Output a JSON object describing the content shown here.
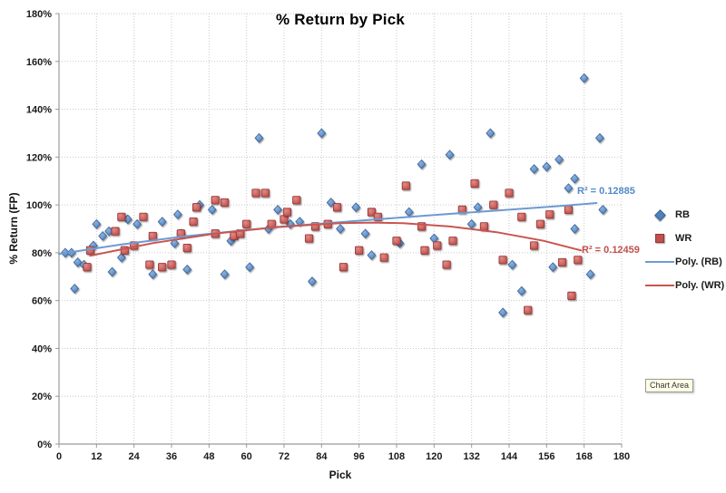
{
  "chart_data": {
    "type": "scatter",
    "title": "% Return by Pick",
    "xlabel": "Pick",
    "ylabel": "% Return (FP)",
    "x_axis": {
      "min": 0,
      "max": 180,
      "step": 12
    },
    "y_axis": {
      "min": 0,
      "max": 180,
      "step": 20,
      "format": "percent"
    },
    "grid": true,
    "legend": {
      "position": "right",
      "entries": [
        "RB",
        "WR",
        "Poly. (RB)",
        "Poly. (WR)"
      ]
    },
    "series": [
      {
        "name": "RB",
        "marker": "diamond",
        "color": "#4F81BD",
        "fill_light": "#8CB4E2",
        "fill_dark": "#4F81BD",
        "stroke": "#3A6494",
        "points": [
          [
            2,
            80
          ],
          [
            4,
            80
          ],
          [
            5,
            65
          ],
          [
            6,
            76
          ],
          [
            8,
            75
          ],
          [
            11,
            83
          ],
          [
            12,
            92
          ],
          [
            14,
            87
          ],
          [
            16,
            89
          ],
          [
            17,
            72
          ],
          [
            20,
            78
          ],
          [
            22,
            94
          ],
          [
            25,
            92
          ],
          [
            30,
            71
          ],
          [
            33,
            93
          ],
          [
            37,
            84
          ],
          [
            38,
            96
          ],
          [
            39,
            88
          ],
          [
            41,
            73
          ],
          [
            45,
            100
          ],
          [
            49,
            98
          ],
          [
            53,
            71
          ],
          [
            55,
            85
          ],
          [
            61,
            74
          ],
          [
            64,
            128
          ],
          [
            67,
            90
          ],
          [
            70,
            98
          ],
          [
            74,
            92
          ],
          [
            77,
            93
          ],
          [
            81,
            68
          ],
          [
            84,
            130
          ],
          [
            87,
            101
          ],
          [
            90,
            90
          ],
          [
            95,
            99
          ],
          [
            98,
            88
          ],
          [
            100,
            79
          ],
          [
            109,
            84
          ],
          [
            112,
            97
          ],
          [
            116,
            117
          ],
          [
            120,
            86
          ],
          [
            125,
            121
          ],
          [
            132,
            92
          ],
          [
            134,
            99
          ],
          [
            138,
            130
          ],
          [
            142,
            55
          ],
          [
            145,
            75
          ],
          [
            148,
            64
          ],
          [
            152,
            115
          ],
          [
            156,
            116
          ],
          [
            158,
            74
          ],
          [
            160,
            119
          ],
          [
            163,
            107
          ],
          [
            165,
            111
          ],
          [
            165,
            90
          ],
          [
            168,
            153
          ],
          [
            170,
            71
          ],
          [
            173,
            128
          ],
          [
            174,
            98
          ]
        ]
      },
      {
        "name": "WR",
        "marker": "square",
        "color": "#C0504D",
        "fill_light": "#E08B86",
        "fill_dark": "#C0504D",
        "stroke": "#943634",
        "points": [
          [
            9,
            74
          ],
          [
            10,
            81
          ],
          [
            18,
            89
          ],
          [
            20,
            95
          ],
          [
            21,
            81
          ],
          [
            24,
            83
          ],
          [
            27,
            95
          ],
          [
            29,
            75
          ],
          [
            30,
            87
          ],
          [
            33,
            74
          ],
          [
            36,
            75
          ],
          [
            39,
            88
          ],
          [
            41,
            82
          ],
          [
            43,
            93
          ],
          [
            44,
            99
          ],
          [
            50,
            88
          ],
          [
            50,
            102
          ],
          [
            53,
            101
          ],
          [
            56,
            87
          ],
          [
            58,
            88
          ],
          [
            60,
            92
          ],
          [
            63,
            105
          ],
          [
            66,
            105
          ],
          [
            68,
            92
          ],
          [
            72,
            94
          ],
          [
            73,
            97
          ],
          [
            76,
            102
          ],
          [
            80,
            86
          ],
          [
            82,
            91
          ],
          [
            86,
            92
          ],
          [
            89,
            99
          ],
          [
            91,
            74
          ],
          [
            96,
            81
          ],
          [
            100,
            97
          ],
          [
            102,
            95
          ],
          [
            104,
            78
          ],
          [
            108,
            85
          ],
          [
            111,
            108
          ],
          [
            116,
            91
          ],
          [
            117,
            81
          ],
          [
            121,
            83
          ],
          [
            124,
            75
          ],
          [
            126,
            85
          ],
          [
            129,
            98
          ],
          [
            133,
            109
          ],
          [
            136,
            91
          ],
          [
            139,
            100
          ],
          [
            142,
            77
          ],
          [
            144,
            105
          ],
          [
            148,
            95
          ],
          [
            150,
            56
          ],
          [
            152,
            83
          ],
          [
            154,
            92
          ],
          [
            157,
            96
          ],
          [
            161,
            76
          ],
          [
            163,
            98
          ],
          [
            164,
            62
          ],
          [
            166,
            77
          ]
        ]
      }
    ],
    "trendlines": [
      {
        "name": "Poly. (RB)",
        "series": "RB",
        "color": "#6D9AD2",
        "r2": "R² = 0.12885",
        "points": [
          [
            0,
            79.5
          ],
          [
            20,
            83.5
          ],
          [
            40,
            86.8
          ],
          [
            60,
            89.5
          ],
          [
            80,
            91.8
          ],
          [
            100,
            93.8
          ],
          [
            120,
            95.8
          ],
          [
            140,
            97.6
          ],
          [
            160,
            99.5
          ],
          [
            172,
            100.8
          ]
        ]
      },
      {
        "name": "Poly. (WR)",
        "series": "WR",
        "color": "#C9554F",
        "r2": "R² = 0.12459",
        "points": [
          [
            10,
            78.8
          ],
          [
            30,
            84
          ],
          [
            50,
            88
          ],
          [
            70,
            90.8
          ],
          [
            90,
            92.4
          ],
          [
            100,
            92.6
          ],
          [
            110,
            92.4
          ],
          [
            125,
            91
          ],
          [
            140,
            88.6
          ],
          [
            155,
            85
          ],
          [
            167,
            81
          ]
        ]
      }
    ]
  },
  "legend": {
    "items": [
      {
        "label": "RB"
      },
      {
        "label": "WR"
      },
      {
        "label": "Poly. (RB)"
      },
      {
        "label": "Poly. (WR)"
      }
    ]
  },
  "annotations": {
    "r2_rb": "R² = 0.12885",
    "r2_wr": "R² = 0.12459"
  },
  "tooltip": {
    "label": "Chart Area"
  },
  "colors": {
    "gridline": "#c9c9c9",
    "axis": "#9b9b9b",
    "tick_text": "#1a1a1a",
    "r2_rb": "#5589C8",
    "r2_wr": "#C0504D"
  }
}
